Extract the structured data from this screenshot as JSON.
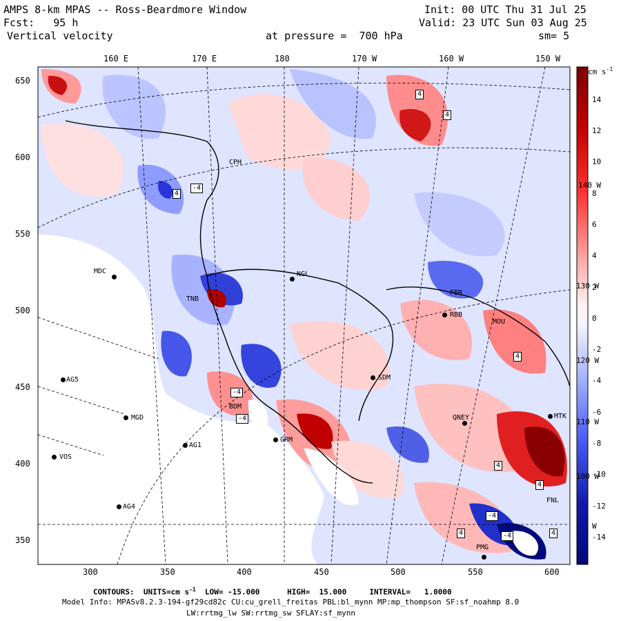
{
  "header": {
    "title": "AMPS 8-km MPAS -- Ross-Beardmore Window",
    "fcst_label": "Fcst:",
    "fcst_value": "95 h",
    "variable": "Vertical velocity",
    "init": "Init: 00 UTC Thu 31 Jul 25",
    "valid": "Valid: 23 UTC Sun 03 Aug 25",
    "pressure": "at pressure =  700 hPa",
    "smoothing": "sm= 5"
  },
  "longitude_labels": [
    "160 E",
    "170 E",
    "180",
    "170 W",
    "160 W",
    "150 W"
  ],
  "y_tick_labels": [
    "650",
    "600",
    "550",
    "500",
    "450",
    "400",
    "350"
  ],
  "x_tick_labels": [
    "300",
    "350",
    "400",
    "450",
    "500",
    "550",
    "600"
  ],
  "colorbar": {
    "units": "cm s",
    "units_exp": "-1",
    "tick_labels": [
      "14",
      "12",
      "10",
      "8",
      "6",
      "4",
      "2",
      "0",
      "-2",
      "-4",
      "-6",
      "-8",
      "-10",
      "-12",
      "-14"
    ],
    "values": [
      14,
      12,
      10,
      8,
      6,
      4,
      2,
      0,
      -2,
      -4,
      -6,
      -8,
      -10,
      -12,
      -14
    ],
    "colors_high_to_low": [
      "#7f0000",
      "#a00000",
      "#c00000",
      "#e01010",
      "#ff3030",
      "#ff6a6a",
      "#ffa0a0",
      "#ffd6d6",
      "#ffffff",
      "#d6ddff",
      "#a8b6ff",
      "#7c8cff",
      "#4a5cf2",
      "#2830d0",
      "#101aa8",
      "#000a7a"
    ],
    "overprint_labels": [
      "140 W",
      "130 W",
      "120 W",
      "110 W",
      "100 W",
      "W"
    ]
  },
  "stations": [
    {
      "label": "CPH"
    },
    {
      "label": "MDC"
    },
    {
      "label": "NGL"
    },
    {
      "label": "TNB"
    },
    {
      "label": "AG5"
    },
    {
      "label": "MGD"
    },
    {
      "label": "AG1"
    },
    {
      "label": "VOS"
    },
    {
      "label": "AG4"
    },
    {
      "label": "SDM"
    },
    {
      "label": "BDM"
    },
    {
      "label": "GRM"
    },
    {
      "label": "FBR"
    },
    {
      "label": "RBB"
    },
    {
      "label": "MOU"
    },
    {
      "label": "QNEY"
    },
    {
      "label": "MTK"
    },
    {
      "label": "FNL"
    },
    {
      "label": "PMG"
    }
  ],
  "contour_labels": [
    "4",
    "-4"
  ],
  "footer": {
    "contours": "CONTOURS:  UNITS=cm s",
    "contours_exp": "-1",
    "contours_rest": "  LOW= -15.000      HIGH=  15.000     INTERVAL=   1.0000",
    "model_info": "Model Info: MPASv8.2.3-194-gf29cd82c CU:cu_grell_freitas PBL:bl_mynn MP:mp_thompson SF:sf_noahmp 8.0",
    "physics": "LW:rrtmg_lw SW:rrtmg_sw SFLAY:sf_mynn"
  }
}
